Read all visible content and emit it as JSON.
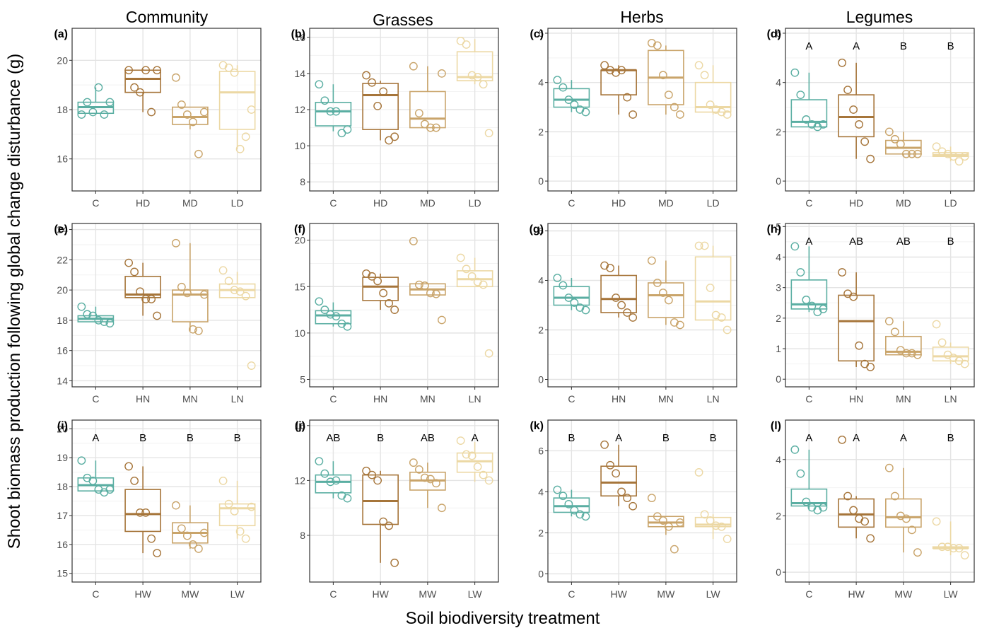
{
  "column_titles": [
    "Community",
    "Grasses",
    "Herbs",
    "Legumes"
  ],
  "ylabel": "Shoot biomass production following global change disturbance (g)",
  "xlabel": "Soil biodiversity treatment",
  "colors": {
    "C": "#5aaea2",
    "H": "#a6753a",
    "M": "#c9a46a",
    "L": "#ecd8a4"
  },
  "chart_data": [
    {
      "type": "box",
      "panel": "(a)",
      "group": "Community",
      "row": "D",
      "categories": [
        "C",
        "HD",
        "MD",
        "LD"
      ],
      "ylim": [
        14.7,
        21.3
      ],
      "yticks": [
        16,
        18,
        20
      ],
      "letters": [],
      "boxes": [
        {
          "q1": 17.85,
          "median": 18.1,
          "q3": 18.3,
          "whisker_low": 17.8,
          "whisker_high": 18.9
        },
        {
          "q1": 18.7,
          "median": 19.25,
          "q3": 19.6,
          "whisker_low": 17.9,
          "whisker_high": 19.65
        },
        {
          "q1": 17.4,
          "median": 17.7,
          "q3": 18.1,
          "whisker_low": 17.2,
          "whisker_high": 18.1
        },
        {
          "q1": 17.2,
          "median": 18.7,
          "q3": 19.55,
          "whisker_low": 16.4,
          "whisker_high": 19.8
        }
      ],
      "points": [
        [
          17.8,
          18.3,
          17.9,
          18.9,
          17.8,
          18.3
        ],
        [
          19.6,
          18.9,
          18.7,
          19.6,
          17.9,
          19.6
        ],
        [
          19.3,
          18.2,
          17.8,
          17.5,
          16.2,
          17.9
        ],
        [
          19.8,
          19.7,
          19.5,
          16.4,
          16.9,
          18.0
        ]
      ]
    },
    {
      "type": "box",
      "panel": "(b)",
      "group": "Grasses",
      "row": "D",
      "categories": [
        "C",
        "HD",
        "MD",
        "LD"
      ],
      "ylim": [
        7.5,
        16.5
      ],
      "yticks": [
        8,
        10,
        12,
        14,
        16
      ],
      "letters": [],
      "boxes": [
        {
          "q1": 11.1,
          "median": 11.9,
          "q3": 12.4,
          "whisker_low": 10.8,
          "whisker_high": 13.4
        },
        {
          "q1": 10.9,
          "median": 12.8,
          "q3": 13.45,
          "whisker_low": 10.3,
          "whisker_high": 13.6
        },
        {
          "q1": 11.0,
          "median": 11.5,
          "q3": 13.0,
          "whisker_low": 11.0,
          "whisker_high": 14.4
        },
        {
          "q1": 13.6,
          "median": 13.8,
          "q3": 15.2,
          "whisker_low": 13.4,
          "whisker_high": 15.9
        }
      ],
      "points": [
        [
          13.4,
          12.5,
          11.9,
          11.9,
          10.7,
          10.9
        ],
        [
          13.9,
          13.5,
          12.2,
          13.0,
          10.3,
          10.5
        ],
        [
          14.4,
          11.8,
          11.2,
          11.0,
          11.0,
          14.0
        ],
        [
          15.8,
          15.6,
          13.9,
          13.8,
          13.4,
          10.7
        ]
      ]
    },
    {
      "type": "box",
      "panel": "(c)",
      "group": "Herbs",
      "row": "D",
      "categories": [
        "C",
        "HD",
        "MD",
        "LD"
      ],
      "ylim": [
        -0.4,
        6.2
      ],
      "yticks": [
        0,
        2,
        4,
        6
      ],
      "letters": [],
      "boxes": [
        {
          "q1": 3.0,
          "median": 3.3,
          "q3": 3.75,
          "whisker_low": 2.8,
          "whisker_high": 4.1
        },
        {
          "q1": 3.5,
          "median": 4.5,
          "q3": 4.5,
          "whisker_low": 2.7,
          "whisker_high": 4.7
        },
        {
          "q1": 3.1,
          "median": 4.2,
          "q3": 5.3,
          "whisker_low": 2.7,
          "whisker_high": 5.5
        },
        {
          "q1": 2.8,
          "median": 3.0,
          "q3": 4.0,
          "whisker_low": 2.7,
          "whisker_high": 4.7
        }
      ],
      "points": [
        [
          4.1,
          3.8,
          3.3,
          3.1,
          2.9,
          2.8
        ],
        [
          4.7,
          4.5,
          4.4,
          4.5,
          3.4,
          2.7
        ],
        [
          5.6,
          5.5,
          4.3,
          3.5,
          3.0,
          2.7
        ],
        [
          4.7,
          4.3,
          3.1,
          2.9,
          2.8,
          2.7
        ]
      ]
    },
    {
      "type": "box",
      "panel": "(d)",
      "group": "Legumes",
      "row": "D",
      "categories": [
        "C",
        "HD",
        "MD",
        "LD"
      ],
      "ylim": [
        -0.4,
        6.2
      ],
      "yticks": [
        0,
        2,
        4,
        6
      ],
      "letters": [
        "A",
        "A",
        "B",
        "B"
      ],
      "boxes": [
        {
          "q1": 2.2,
          "median": 2.4,
          "q3": 3.3,
          "whisker_low": 2.2,
          "whisker_high": 4.4
        },
        {
          "q1": 1.8,
          "median": 2.6,
          "q3": 3.5,
          "whisker_low": 0.9,
          "whisker_high": 4.8
        },
        {
          "q1": 1.1,
          "median": 1.35,
          "q3": 1.65,
          "whisker_low": 1.0,
          "whisker_high": 2.0
        },
        {
          "q1": 1.0,
          "median": 1.05,
          "q3": 1.15,
          "whisker_low": 0.8,
          "whisker_high": 1.4
        }
      ],
      "points": [
        [
          4.4,
          3.5,
          2.5,
          2.3,
          2.2,
          2.3
        ],
        [
          4.8,
          3.7,
          2.9,
          2.3,
          1.6,
          0.9
        ],
        [
          2.0,
          1.7,
          1.5,
          1.1,
          1.1,
          1.1
        ],
        [
          1.4,
          1.2,
          1.1,
          1.0,
          0.8,
          1.0
        ]
      ]
    },
    {
      "type": "box",
      "panel": "(e)",
      "group": "Community",
      "row": "N",
      "categories": [
        "C",
        "HN",
        "MN",
        "LN"
      ],
      "ylim": [
        13.6,
        24.4
      ],
      "yticks": [
        14,
        16,
        18,
        20,
        22,
        24
      ],
      "letters": [],
      "boxes": [
        {
          "q1": 17.9,
          "median": 18.1,
          "q3": 18.3,
          "whisker_low": 17.8,
          "whisker_high": 18.9
        },
        {
          "q1": 19.5,
          "median": 19.7,
          "q3": 20.9,
          "whisker_low": 18.3,
          "whisker_high": 21.8
        },
        {
          "q1": 17.9,
          "median": 19.7,
          "q3": 20.0,
          "whisker_low": 17.3,
          "whisker_high": 23.1
        },
        {
          "q1": 19.5,
          "median": 20.0,
          "q3": 20.4,
          "whisker_low": 19.5,
          "whisker_high": 21.2
        }
      ],
      "points": [
        [
          18.9,
          18.4,
          18.3,
          18.0,
          17.9,
          17.8
        ],
        [
          21.8,
          21.2,
          19.9,
          19.4,
          19.4,
          18.3
        ],
        [
          23.1,
          20.2,
          19.8,
          17.4,
          17.3,
          19.7
        ],
        [
          21.3,
          20.6,
          20.0,
          19.9,
          19.6,
          15.0
        ]
      ]
    },
    {
      "type": "box",
      "panel": "(f)",
      "group": "Grasses",
      "row": "N",
      "categories": [
        "C",
        "HN",
        "MN",
        "LN"
      ],
      "ylim": [
        4.2,
        21.8
      ],
      "yticks": [
        5,
        10,
        15,
        20
      ],
      "letters": [],
      "boxes": [
        {
          "q1": 11.0,
          "median": 11.9,
          "q3": 12.4,
          "whisker_low": 10.7,
          "whisker_high": 13.3
        },
        {
          "q1": 13.5,
          "median": 15.0,
          "q3": 16.0,
          "whisker_low": 12.5,
          "whisker_high": 16.4
        },
        {
          "q1": 14.1,
          "median": 14.7,
          "q3": 15.3,
          "whisker_low": 14.1,
          "whisker_high": 15.3
        },
        {
          "q1": 15.0,
          "median": 15.8,
          "q3": 16.7,
          "whisker_low": 15.0,
          "whisker_high": 18.1
        }
      ],
      "points": [
        [
          13.4,
          12.5,
          12.0,
          11.8,
          11.0,
          10.7
        ],
        [
          16.4,
          16.1,
          15.6,
          14.3,
          13.2,
          12.5
        ],
        [
          19.9,
          15.2,
          15.1,
          14.3,
          14.2,
          11.4
        ],
        [
          18.1,
          16.9,
          16.1,
          15.5,
          15.2,
          7.8
        ]
      ]
    },
    {
      "type": "box",
      "panel": "(g)",
      "group": "Herbs",
      "row": "N",
      "categories": [
        "C",
        "HN",
        "MN",
        "LN"
      ],
      "ylim": [
        -0.3,
        6.3
      ],
      "yticks": [
        0,
        2,
        4,
        6
      ],
      "letters": [],
      "boxes": [
        {
          "q1": 3.0,
          "median": 3.3,
          "q3": 3.75,
          "whisker_low": 2.8,
          "whisker_high": 4.1
        },
        {
          "q1": 2.7,
          "median": 3.25,
          "q3": 4.2,
          "whisker_low": 2.5,
          "whisker_high": 4.6
        },
        {
          "q1": 2.5,
          "median": 3.4,
          "q3": 3.9,
          "whisker_low": 2.2,
          "whisker_high": 4.8
        },
        {
          "q1": 2.4,
          "median": 3.15,
          "q3": 4.95,
          "whisker_low": 2.0,
          "whisker_high": 5.4
        }
      ],
      "points": [
        [
          4.1,
          3.8,
          3.3,
          3.1,
          2.9,
          2.8
        ],
        [
          4.6,
          4.5,
          3.3,
          3.0,
          2.7,
          2.5
        ],
        [
          4.8,
          3.9,
          3.5,
          3.2,
          2.3,
          2.2
        ],
        [
          5.4,
          5.4,
          3.7,
          2.6,
          2.5,
          2.0
        ]
      ]
    },
    {
      "type": "box",
      "panel": "(h)",
      "group": "Legumes",
      "row": "N",
      "categories": [
        "C",
        "HN",
        "MN",
        "LN"
      ],
      "ylim": [
        -0.25,
        5.1
      ],
      "yticks": [
        0,
        1,
        2,
        3,
        4,
        5
      ],
      "letters": [
        "A",
        "AB",
        "AB",
        "B"
      ],
      "boxes": [
        {
          "q1": 2.3,
          "median": 2.45,
          "q3": 3.25,
          "whisker_low": 2.2,
          "whisker_high": 4.35
        },
        {
          "q1": 0.6,
          "median": 1.9,
          "q3": 2.75,
          "whisker_low": 0.4,
          "whisker_high": 3.5
        },
        {
          "q1": 0.8,
          "median": 0.9,
          "q3": 1.4,
          "whisker_low": 0.8,
          "whisker_high": 1.9
        },
        {
          "q1": 0.6,
          "median": 0.75,
          "q3": 1.05,
          "whisker_low": 0.5,
          "whisker_high": 1.2
        }
      ],
      "points": [
        [
          4.35,
          3.5,
          2.6,
          2.4,
          2.2,
          2.3
        ],
        [
          3.5,
          2.8,
          2.7,
          1.1,
          0.5,
          0.4
        ],
        [
          1.9,
          1.55,
          0.95,
          0.85,
          0.85,
          0.8
        ],
        [
          1.8,
          1.2,
          0.8,
          0.7,
          0.6,
          0.5
        ]
      ]
    },
    {
      "type": "box",
      "panel": "(i)",
      "group": "Community",
      "row": "W",
      "categories": [
        "C",
        "HW",
        "MW",
        "LW"
      ],
      "ylim": [
        14.7,
        20.3
      ],
      "yticks": [
        15,
        16,
        17,
        18,
        19,
        20
      ],
      "letters": [
        "A",
        "B",
        "B",
        "B"
      ],
      "boxes": [
        {
          "q1": 17.85,
          "median": 18.05,
          "q3": 18.3,
          "whisker_low": 17.8,
          "whisker_high": 18.9
        },
        {
          "q1": 16.45,
          "median": 17.05,
          "q3": 17.9,
          "whisker_low": 15.7,
          "whisker_high": 18.7
        },
        {
          "q1": 16.05,
          "median": 16.4,
          "q3": 16.75,
          "whisker_low": 15.85,
          "whisker_high": 17.35
        },
        {
          "q1": 16.65,
          "median": 17.25,
          "q3": 17.4,
          "whisker_low": 16.2,
          "whisker_high": 18.2
        }
      ],
      "points": [
        [
          18.9,
          18.3,
          18.2,
          17.9,
          17.8,
          17.9
        ],
        [
          18.7,
          18.2,
          17.1,
          17.1,
          16.2,
          15.7
        ],
        [
          17.35,
          16.55,
          16.3,
          16.0,
          15.85,
          16.4
        ],
        [
          18.2,
          17.4,
          17.15,
          16.45,
          16.2,
          17.3
        ]
      ]
    },
    {
      "type": "box",
      "panel": "(j)",
      "group": "Grasses",
      "row": "W",
      "categories": [
        "C",
        "HW",
        "MW",
        "LW"
      ],
      "ylim": [
        4.6,
        16.4
      ],
      "yticks": [
        8,
        12,
        16
      ],
      "letters": [
        "AB",
        "B",
        "AB",
        "A"
      ],
      "boxes": [
        {
          "q1": 11.1,
          "median": 11.9,
          "q3": 12.4,
          "whisker_low": 10.7,
          "whisker_high": 13.4
        },
        {
          "q1": 8.8,
          "median": 10.5,
          "q3": 12.4,
          "whisker_low": 6.0,
          "whisker_high": 12.7
        },
        {
          "q1": 11.3,
          "median": 12.0,
          "q3": 12.6,
          "whisker_low": 10.0,
          "whisker_high": 13.3
        },
        {
          "q1": 12.6,
          "median": 13.4,
          "q3": 14.0,
          "whisker_low": 11.9,
          "whisker_high": 14.8
        }
      ],
      "points": [
        [
          13.4,
          12.5,
          11.9,
          12.0,
          10.9,
          10.7
        ],
        [
          12.7,
          12.4,
          12.0,
          9.0,
          8.7,
          6.0
        ],
        [
          13.3,
          12.8,
          12.2,
          12.1,
          11.8,
          10.0
        ],
        [
          14.9,
          13.9,
          13.8,
          13.0,
          12.4,
          12.0
        ]
      ]
    },
    {
      "type": "box",
      "panel": "(k)",
      "group": "Herbs",
      "row": "W",
      "categories": [
        "C",
        "HW",
        "MW",
        "LW"
      ],
      "ylim": [
        -0.4,
        7.5
      ],
      "yticks": [
        0,
        2,
        4,
        6
      ],
      "letters": [
        "B",
        "A",
        "B",
        "B"
      ],
      "boxes": [
        {
          "q1": 3.0,
          "median": 3.3,
          "q3": 3.7,
          "whisker_low": 2.8,
          "whisker_high": 4.1
        },
        {
          "q1": 3.8,
          "median": 4.45,
          "q3": 5.25,
          "whisker_low": 3.3,
          "whisker_high": 6.3
        },
        {
          "q1": 2.3,
          "median": 2.5,
          "q3": 2.8,
          "whisker_low": 1.9,
          "whisker_high": 2.8
        },
        {
          "q1": 2.3,
          "median": 2.4,
          "q3": 2.75,
          "whisker_low": 1.7,
          "whisker_high": 2.9
        }
      ],
      "points": [
        [
          4.1,
          3.8,
          3.4,
          3.1,
          2.9,
          2.8
        ],
        [
          6.3,
          5.3,
          4.9,
          4.0,
          3.7,
          3.3
        ],
        [
          3.7,
          2.8,
          2.6,
          2.3,
          1.2,
          2.5
        ],
        [
          4.95,
          2.9,
          2.6,
          2.35,
          2.3,
          1.7
        ]
      ]
    },
    {
      "type": "box",
      "panel": "(l)",
      "group": "Legumes",
      "row": "W",
      "categories": [
        "C",
        "HW",
        "MW",
        "LW"
      ],
      "ylim": [
        -0.35,
        5.4
      ],
      "yticks": [
        0,
        2,
        4
      ],
      "letters": [
        "A",
        "A",
        "A",
        "B"
      ],
      "boxes": [
        {
          "q1": 2.35,
          "median": 2.45,
          "q3": 2.95,
          "whisker_low": 2.2,
          "whisker_high": 4.35
        },
        {
          "q1": 1.6,
          "median": 2.05,
          "q3": 2.6,
          "whisker_low": 1.2,
          "whisker_high": 2.7
        },
        {
          "q1": 1.6,
          "median": 1.95,
          "q3": 2.6,
          "whisker_low": 0.7,
          "whisker_high": 3.7
        },
        {
          "q1": 0.85,
          "median": 0.85,
          "q3": 0.9,
          "whisker_low": 0.6,
          "whisker_high": 1.8
        }
      ],
      "points": [
        [
          4.35,
          3.5,
          2.5,
          2.3,
          2.2,
          2.3
        ],
        [
          4.7,
          2.7,
          2.2,
          1.9,
          1.8,
          1.2
        ],
        [
          3.7,
          2.7,
          2.0,
          1.9,
          1.5,
          0.7
        ],
        [
          1.8,
          0.9,
          0.9,
          0.85,
          0.85,
          0.6
        ]
      ]
    }
  ]
}
